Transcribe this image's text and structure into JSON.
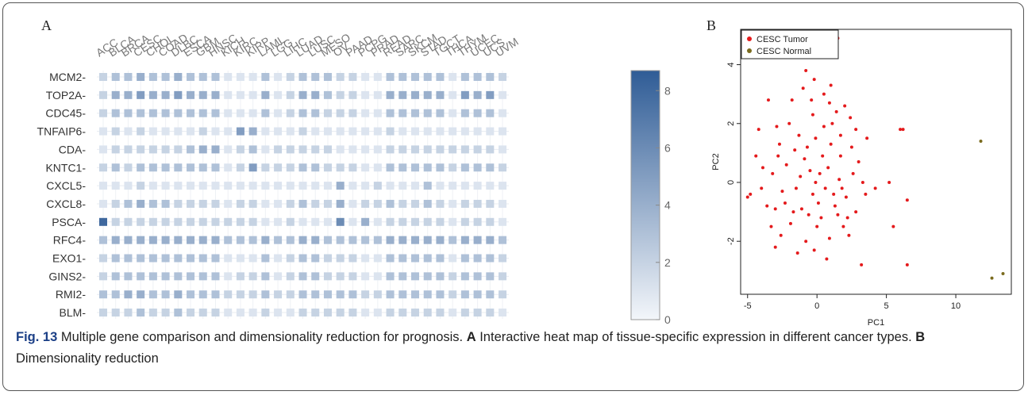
{
  "panels": {
    "a": "A",
    "b": "B"
  },
  "caption": {
    "fig": "Fig. 13",
    "text1": " Multiple gene comparison and dimensionality reduction for prognosis. ",
    "a": "A",
    "text2": " Interactive heat map of tissue-specific expression in different cancer types. ",
    "b": "B",
    "text3": " Dimensionality reduction"
  },
  "colors": {
    "low": "#f3f6fa",
    "high": "#2f5c96",
    "tumor": "#e41a1c",
    "normal": "#7a6b1e"
  },
  "chart_data": [
    {
      "type": "heatmap",
      "x": [
        "ACC",
        "BLCA",
        "BRCA",
        "CESC",
        "CHOL",
        "COAD",
        "DLBC",
        "ESCA",
        "GBM",
        "HNSC",
        "KICH",
        "KIRC",
        "KIRP",
        "LAML",
        "LGG",
        "LIHC",
        "LUAD",
        "LUSC",
        "MESO",
        "OV",
        "PAAD",
        "PCPG",
        "PRAD",
        "READ",
        "SARC",
        "SKCM",
        "STAD",
        "TGCT",
        "THCA",
        "THYM",
        "UCEC",
        "UCS",
        "UVM"
      ],
      "y": [
        "MCM2",
        "TOP2A",
        "CDC45",
        "TNFAIP6",
        "CDA",
        "KNTC1",
        "CXCL5",
        "CXCL8",
        "PSCA",
        "RFC4",
        "EXO1",
        "GINS2",
        "RMI2",
        "BLM"
      ],
      "colorbar": {
        "range": [
          0,
          8.7
        ],
        "ticks": [
          "0",
          "2",
          "4",
          "6",
          "8"
        ]
      },
      "values": [
        [
          2,
          3,
          3,
          4,
          3,
          3,
          4,
          3,
          3,
          3,
          1,
          1,
          1,
          3,
          1,
          2,
          3,
          3,
          3,
          2,
          2,
          1,
          1,
          3,
          3,
          3,
          3,
          3,
          1,
          3,
          3,
          3,
          2
        ],
        [
          2,
          4,
          4,
          5,
          4,
          4,
          5,
          4,
          4,
          4,
          1,
          1,
          1,
          4,
          1,
          2,
          4,
          4,
          3,
          2,
          2,
          1,
          1,
          4,
          4,
          4,
          4,
          4,
          1,
          5,
          4,
          5,
          1
        ],
        [
          2,
          3,
          3,
          3,
          3,
          3,
          3,
          3,
          3,
          3,
          1,
          1,
          1,
          3,
          1,
          2,
          3,
          3,
          2,
          2,
          2,
          1,
          1,
          3,
          3,
          3,
          3,
          3,
          1,
          3,
          3,
          3,
          1
        ],
        [
          1,
          2,
          1,
          2,
          1,
          1,
          1,
          1,
          2,
          1,
          1,
          5,
          4,
          1,
          1,
          1,
          2,
          1,
          1,
          1,
          1,
          1,
          1,
          2,
          1,
          1,
          1,
          1,
          1,
          1,
          1,
          1,
          1
        ],
        [
          1,
          2,
          2,
          2,
          2,
          2,
          2,
          3,
          4,
          4,
          1,
          2,
          3,
          1,
          2,
          2,
          2,
          2,
          2,
          1,
          1,
          1,
          1,
          2,
          2,
          2,
          2,
          2,
          2,
          2,
          2,
          2,
          1
        ],
        [
          2,
          3,
          2,
          3,
          3,
          3,
          3,
          3,
          3,
          3,
          1,
          2,
          5,
          2,
          2,
          2,
          3,
          3,
          2,
          2,
          2,
          1,
          1,
          3,
          3,
          3,
          3,
          3,
          2,
          3,
          3,
          3,
          2
        ],
        [
          1,
          1,
          1,
          2,
          1,
          1,
          1,
          1,
          1,
          1,
          1,
          1,
          1,
          1,
          1,
          1,
          1,
          1,
          1,
          4,
          1,
          1,
          2,
          1,
          1,
          1,
          3,
          1,
          1,
          1,
          1,
          1,
          1
        ],
        [
          1,
          2,
          3,
          4,
          3,
          3,
          2,
          2,
          2,
          2,
          1,
          2,
          2,
          1,
          1,
          2,
          3,
          2,
          2,
          4,
          1,
          2,
          2,
          3,
          2,
          2,
          3,
          2,
          1,
          2,
          2,
          2,
          1
        ],
        [
          8,
          2,
          2,
          2,
          2,
          2,
          2,
          2,
          2,
          2,
          2,
          2,
          2,
          1,
          1,
          2,
          1,
          1,
          1,
          6,
          1,
          4,
          1,
          2,
          2,
          2,
          2,
          2,
          1,
          2,
          2,
          2,
          1
        ],
        [
          3,
          4,
          4,
          4,
          4,
          4,
          4,
          4,
          4,
          4,
          3,
          3,
          3,
          4,
          3,
          3,
          4,
          4,
          3,
          3,
          3,
          3,
          3,
          4,
          4,
          4,
          4,
          4,
          3,
          4,
          4,
          4,
          3
        ],
        [
          2,
          3,
          3,
          3,
          3,
          3,
          3,
          3,
          3,
          3,
          1,
          1,
          1,
          3,
          1,
          2,
          3,
          3,
          2,
          2,
          2,
          1,
          1,
          3,
          3,
          3,
          3,
          3,
          1,
          3,
          3,
          3,
          2
        ],
        [
          2,
          3,
          3,
          3,
          3,
          3,
          3,
          3,
          3,
          3,
          1,
          2,
          2,
          3,
          1,
          2,
          3,
          3,
          2,
          2,
          2,
          1,
          1,
          3,
          3,
          3,
          3,
          3,
          2,
          3,
          3,
          3,
          2
        ],
        [
          3,
          3,
          4,
          4,
          3,
          3,
          4,
          3,
          3,
          3,
          2,
          2,
          2,
          3,
          2,
          2,
          3,
          3,
          3,
          3,
          3,
          2,
          2,
          3,
          3,
          3,
          3,
          3,
          2,
          3,
          3,
          3,
          2
        ],
        [
          2,
          2,
          2,
          3,
          2,
          2,
          3,
          2,
          2,
          2,
          1,
          1,
          1,
          2,
          1,
          1,
          2,
          2,
          2,
          2,
          2,
          1,
          1,
          2,
          2,
          2,
          2,
          2,
          1,
          2,
          2,
          2,
          1
        ]
      ]
    },
    {
      "type": "scatter",
      "xlabel": "PC1",
      "ylabel": "PC2",
      "xlim": [
        -5.5,
        14
      ],
      "ylim": [
        -3.8,
        5.2
      ],
      "xticks": [
        "-5",
        "0",
        "5",
        "10"
      ],
      "yticks": [
        "-2",
        "0",
        "2",
        "4"
      ],
      "legend": "top-left",
      "series": [
        {
          "name": "CESC Tumor",
          "points": [
            [
              1.5,
              4.9
            ],
            [
              0.2,
              4.3
            ],
            [
              -0.8,
              3.8
            ],
            [
              -3.5,
              2.8
            ],
            [
              -1.8,
              2.8
            ],
            [
              -0.2,
              3.5
            ],
            [
              0.5,
              3.0
            ],
            [
              -1.0,
              3.2
            ],
            [
              1.0,
              3.3
            ],
            [
              -4.2,
              1.8
            ],
            [
              -2.9,
              1.9
            ],
            [
              2.8,
              1.8
            ],
            [
              6.0,
              1.8
            ],
            [
              6.2,
              1.8
            ],
            [
              5.2,
              0.0
            ],
            [
              4.2,
              -0.2
            ],
            [
              3.5,
              -0.4
            ],
            [
              2.2,
              -1.2
            ],
            [
              3.2,
              -2.8
            ],
            [
              5.5,
              -1.5
            ],
            [
              6.5,
              -2.8
            ],
            [
              6.5,
              -0.6
            ],
            [
              -4.8,
              -0.4
            ],
            [
              -5.0,
              -0.5
            ],
            [
              -3.0,
              -2.2
            ],
            [
              2.0,
              2.6
            ],
            [
              1.1,
              2.0
            ],
            [
              -0.3,
              2.3
            ],
            [
              2.5,
              1.2
            ],
            [
              1.7,
              0.9
            ],
            [
              -1.6,
              1.1
            ],
            [
              -2.2,
              0.6
            ],
            [
              -0.5,
              0.4
            ],
            [
              0.6,
              -0.2
            ],
            [
              1.3,
              -0.8
            ],
            [
              -1.1,
              -0.9
            ],
            [
              -2.5,
              -0.3
            ],
            [
              -3.6,
              -0.8
            ],
            [
              0.0,
              -1.5
            ],
            [
              0.9,
              -1.9
            ],
            [
              -0.8,
              -2.0
            ],
            [
              1.9,
              -1.5
            ],
            [
              2.6,
              0.3
            ],
            [
              -1.9,
              -1.4
            ],
            [
              -0.3,
              -0.4
            ],
            [
              0.4,
              0.9
            ],
            [
              -0.1,
              1.5
            ],
            [
              1.4,
              2.4
            ],
            [
              -2.7,
              1.3
            ],
            [
              3.0,
              0.7
            ],
            [
              -4.0,
              -0.2
            ],
            [
              -3.2,
              0.3
            ],
            [
              -1.4,
              -2.4
            ],
            [
              0.7,
              -2.6
            ],
            [
              1.6,
              0.1
            ],
            [
              -0.6,
              -1.1
            ],
            [
              2.1,
              -0.5
            ],
            [
              -3.3,
              -1.5
            ],
            [
              0.2,
              0.3
            ],
            [
              -1.2,
              0.2
            ],
            [
              1.0,
              1.3
            ],
            [
              -2.0,
              2.0
            ],
            [
              -0.4,
              2.8
            ],
            [
              2.4,
              2.2
            ],
            [
              -4.4,
              0.9
            ],
            [
              3.6,
              1.5
            ],
            [
              -2.6,
              -1.8
            ],
            [
              0.3,
              -1.2
            ],
            [
              1.2,
              -0.4
            ],
            [
              -1.5,
              -0.2
            ],
            [
              0.8,
              0.5
            ],
            [
              -0.9,
              0.8
            ],
            [
              2.8,
              -1.0
            ],
            [
              -3.9,
              0.5
            ],
            [
              1.7,
              1.6
            ],
            [
              -0.2,
              -2.3
            ],
            [
              -1.7,
              -1.0
            ],
            [
              0.5,
              1.9
            ],
            [
              -2.3,
              -0.7
            ],
            [
              2.3,
              -1.8
            ],
            [
              -0.7,
              1.2
            ],
            [
              1.5,
              -1.1
            ],
            [
              -3.0,
              -0.9
            ],
            [
              0.1,
              -0.7
            ],
            [
              -1.3,
              1.6
            ],
            [
              3.3,
              0.0
            ],
            [
              -2.8,
              0.9
            ],
            [
              0.9,
              2.7
            ],
            [
              -0.1,
              0.0
            ],
            [
              1.8,
              -0.2
            ]
          ]
        },
        {
          "name": "CESC Normal",
          "points": [
            [
              11.8,
              1.4
            ],
            [
              12.6,
              -3.25
            ],
            [
              13.4,
              -3.1
            ]
          ]
        }
      ]
    }
  ]
}
